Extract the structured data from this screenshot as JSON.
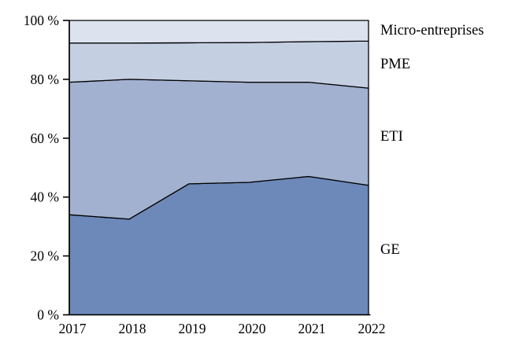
{
  "figure": {
    "background": "#ffffff",
    "axis_color": "#000000",
    "outline_color": "#000000"
  },
  "chart_data": {
    "type": "area",
    "stacked": true,
    "title": "",
    "xlabel": "",
    "ylabel": "",
    "unit": "%",
    "x": [
      2017,
      2018,
      2019,
      2020,
      2021,
      2022
    ],
    "x_tick_labels": [
      "2017",
      "2018",
      "2019",
      "2020",
      "2021",
      "2022"
    ],
    "y_ticks": [
      0,
      20,
      40,
      60,
      80,
      100
    ],
    "y_tick_labels": [
      "0 %",
      "20 %",
      "40 %",
      "60 %",
      "80 %",
      "100 %"
    ],
    "ylim": [
      0,
      100
    ],
    "grid": false,
    "legend_position": "right-of-plot-at-band-centers",
    "series": [
      {
        "name": "GE",
        "color": "#6d89ba",
        "values": [
          34.0,
          32.5,
          44.5,
          45.0,
          47.0,
          44.0
        ]
      },
      {
        "name": "ETI",
        "color": "#a1b1cf",
        "values": [
          45.0,
          47.5,
          35.0,
          34.0,
          32.0,
          33.0
        ]
      },
      {
        "name": "PME",
        "color": "#c4cfe2",
        "values": [
          13.3,
          12.3,
          12.9,
          13.5,
          13.8,
          16.0
        ]
      },
      {
        "name": "Micro-entreprises",
        "color": "#dce3ef",
        "values": [
          7.7,
          7.7,
          7.6,
          7.5,
          7.2,
          7.0
        ]
      }
    ]
  }
}
